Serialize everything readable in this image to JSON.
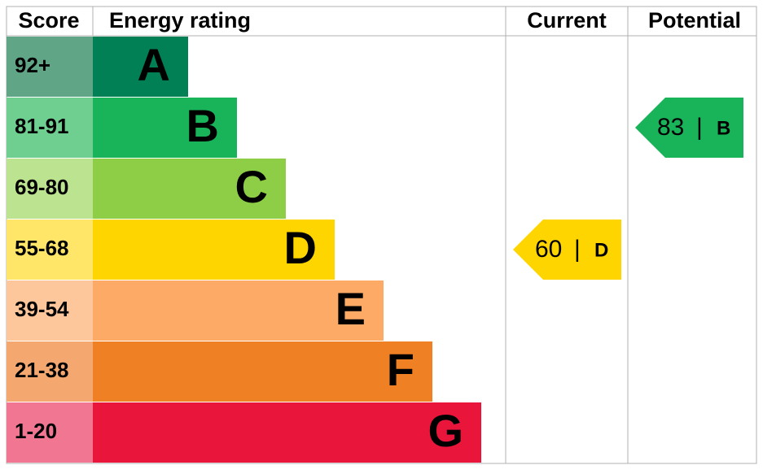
{
  "header": {
    "score": "Score",
    "rating": "Energy rating",
    "current": "Current",
    "potential": "Potential"
  },
  "bands": [
    {
      "score": "92+",
      "letter": "A",
      "color": "#008054",
      "score_color": "#5fa586"
    },
    {
      "score": "81-91",
      "letter": "B",
      "color": "#19b459",
      "score_color": "#6fcf90"
    },
    {
      "score": "69-80",
      "letter": "C",
      "color": "#8dce46",
      "score_color": "#bce38f"
    },
    {
      "score": "55-68",
      "letter": "D",
      "color": "#ffd500",
      "score_color": "#ffe668"
    },
    {
      "score": "39-54",
      "letter": "E",
      "color": "#fcaa65",
      "score_color": "#fdc79b"
    },
    {
      "score": "21-38",
      "letter": "F",
      "color": "#ef8023",
      "score_color": "#f4a76f"
    },
    {
      "score": "1-20",
      "letter": "G",
      "color": "#e9153b",
      "score_color": "#f07692"
    }
  ],
  "current": {
    "value": 60,
    "letter": "D"
  },
  "potential": {
    "value": 83,
    "letter": "B"
  }
}
